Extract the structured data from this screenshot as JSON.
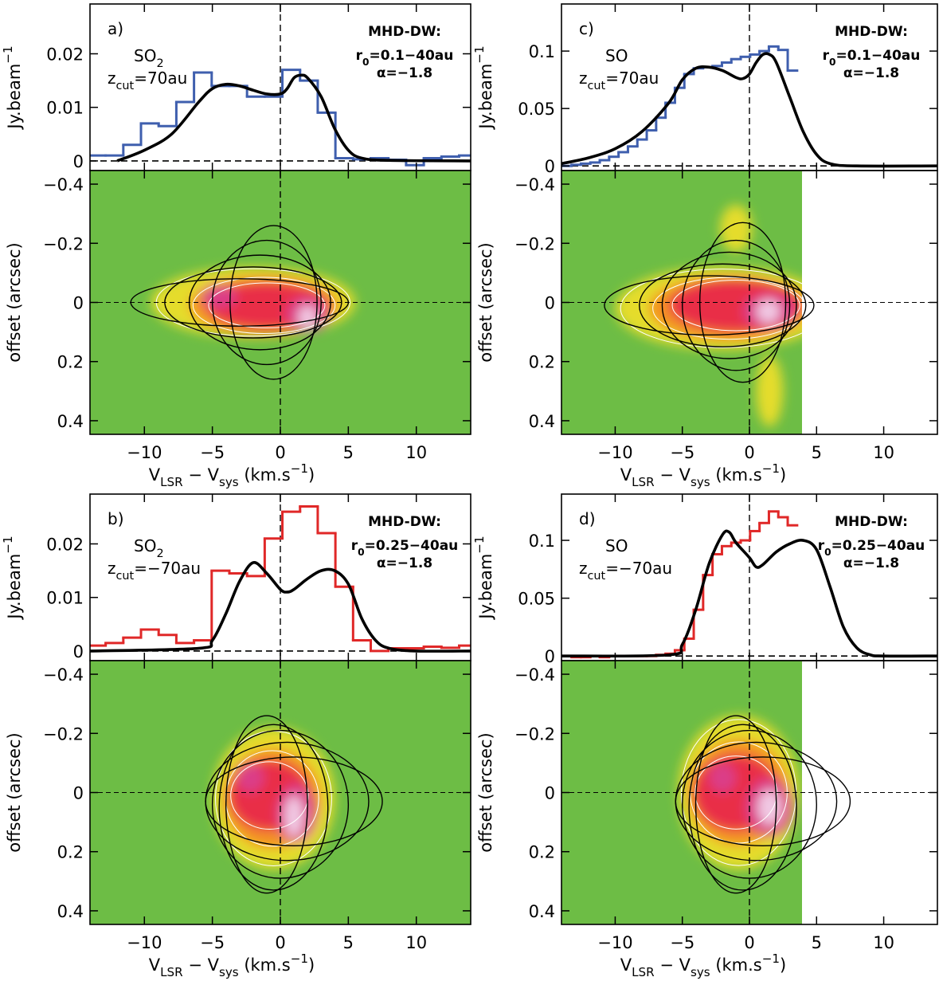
{
  "chart_data": [
    {
      "type": "line",
      "panel_label": "a)",
      "molecule": [
        {
          "text": "SO"
        },
        {
          "sub": "2"
        }
      ],
      "zcut": [
        {
          "text": "z"
        },
        {
          "sub": "cut"
        },
        {
          "text": "=70au"
        }
      ],
      "model": "MHD-DW:",
      "r0": [
        {
          "text": "r"
        },
        {
          "sub": "0"
        },
        {
          "text": "=0.1−40au"
        }
      ],
      "alpha": "α=−1.8",
      "y_label": [
        {
          "text": "Jy.beam"
        },
        {
          "sup": "−1"
        }
      ],
      "xlim": [
        -14,
        14
      ],
      "ylim": [
        -0.0018,
        0.0293
      ],
      "xticks": [
        -10,
        -5,
        0,
        5,
        10
      ],
      "yticks": [
        0,
        0.01,
        0.02
      ],
      "series": [
        {
          "style": "step",
          "color": "#3f5fae",
          "x": [
            -13.5,
            -12.2,
            -10.9,
            -9.6,
            -8.3,
            -7.0,
            -5.7,
            -4.4,
            -3.1,
            -1.8,
            -0.5,
            0.8,
            2.1,
            3.4,
            4.7,
            6.0,
            7.3,
            8.6,
            9.9,
            11.2,
            12.5,
            13.8
          ],
          "values": [
            0.001,
            0.001,
            0.003,
            0.007,
            0.0065,
            0.011,
            0.0165,
            0.014,
            0.014,
            0.012,
            0.012,
            0.017,
            0.015,
            0.009,
            0.0005,
            0.0003,
            0.0005,
            0.0002,
            -0.0008,
            0.0005,
            0.0008,
            0.001
          ]
        },
        {
          "style": "line",
          "color": "#000000",
          "x": [
            -12,
            -10,
            -8,
            -6,
            -5,
            -4,
            -3,
            -2,
            -1,
            0,
            0.5,
            1,
            1.5,
            2,
            3,
            4,
            5,
            6,
            8,
            14
          ],
          "values": [
            0,
            0.002,
            0.005,
            0.011,
            0.0135,
            0.0143,
            0.014,
            0.0132,
            0.0125,
            0.0125,
            0.0135,
            0.0155,
            0.016,
            0.0155,
            0.012,
            0.006,
            0.002,
            0.0005,
            0.0001,
            0
          ]
        }
      ]
    },
    {
      "type": "image",
      "y_label": "offset (arcsec)",
      "x_label": [
        {
          "text": "V"
        },
        {
          "sub": "LSR"
        },
        {
          "text": " − V"
        },
        {
          "sub": "sys"
        },
        {
          "text": " (km.s"
        },
        {
          "sup": "−1"
        },
        {
          "text": ")"
        }
      ],
      "xlim": [
        -14,
        14
      ],
      "ylim": [
        0.446,
        -0.446
      ],
      "xticks": [
        {
          "value": -10,
          "label": "−10"
        },
        {
          "value": -5,
          "label": "−5"
        },
        0,
        5,
        10
      ],
      "yticks": [
        {
          "value": -0.4,
          "label": "−0.4"
        },
        {
          "value": -0.2,
          "label": "−0.2"
        },
        0,
        0.2,
        0.4
      ]
    },
    {
      "type": "line",
      "panel_label": "c)",
      "molecule": [
        {
          "text": "SO"
        }
      ],
      "zcut": [
        {
          "text": "z"
        },
        {
          "sub": "cut"
        },
        {
          "text": "=70au"
        }
      ],
      "model": "MHD-DW:",
      "r0": [
        {
          "text": "r"
        },
        {
          "sub": "0"
        },
        {
          "text": "=0.1−40au"
        }
      ],
      "alpha": "α=−1.8",
      "y_label": [
        {
          "text": "Jy.beam"
        },
        {
          "sup": "−1"
        }
      ],
      "xlim": [
        -14,
        14
      ],
      "ylim": [
        -0.004,
        0.141
      ],
      "xticks": [
        -10,
        -5,
        0,
        5,
        10
      ],
      "yticks": [
        0,
        0.05,
        0.1
      ],
      "series": [
        {
          "style": "step",
          "color": "#3f5fae",
          "x": [
            -13.6,
            -12.9,
            -12.2,
            -11.5,
            -10.8,
            -10.1,
            -9.4,
            -8.7,
            -8.0,
            -7.3,
            -6.6,
            -5.9,
            -5.2,
            -4.5,
            -3.8,
            -3.1,
            -2.4,
            -1.7,
            -1.0,
            -0.3,
            0.4,
            1.1,
            1.8,
            2.5,
            3.2
          ],
          "values": [
            0,
            0.001,
            0.002,
            0.003,
            0.005,
            0.008,
            0.012,
            0.017,
            0.023,
            0.031,
            0.042,
            0.055,
            0.068,
            0.08,
            0.085,
            0.086,
            0.087,
            0.09,
            0.093,
            0.095,
            0.097,
            0.1,
            0.104,
            0.101,
            0.083
          ]
        },
        {
          "style": "line",
          "color": "#000000",
          "x": [
            -14,
            -12,
            -10,
            -8,
            -6,
            -5,
            -4,
            -3,
            -2,
            -1,
            -0.5,
            0,
            0.5,
            1,
            1.5,
            2,
            3,
            4,
            5,
            6,
            8,
            14
          ],
          "values": [
            0.002,
            0.007,
            0.015,
            0.03,
            0.055,
            0.075,
            0.085,
            0.086,
            0.083,
            0.077,
            0.076,
            0.08,
            0.09,
            0.097,
            0.097,
            0.09,
            0.06,
            0.03,
            0.01,
            0.002,
            0,
            0
          ]
        }
      ]
    },
    {
      "type": "image",
      "y_label": "offset (arcsec)",
      "x_label": [
        {
          "text": "V"
        },
        {
          "sub": "LSR"
        },
        {
          "text": " − V"
        },
        {
          "sub": "sys"
        },
        {
          "text": " (km.s"
        },
        {
          "sup": "−1"
        },
        {
          "text": ")"
        }
      ],
      "xlim": [
        -14,
        14
      ],
      "ylim": [
        0.446,
        -0.446
      ],
      "xticks": [
        {
          "value": -10,
          "label": "−10"
        },
        {
          "value": -5,
          "label": "−5"
        },
        0,
        5,
        10
      ],
      "yticks": [
        {
          "value": -0.4,
          "label": "−0.4"
        },
        {
          "value": -0.2,
          "label": "−0.2"
        },
        0,
        0.2,
        0.4
      ]
    },
    {
      "type": "line",
      "panel_label": "b)",
      "molecule": [
        {
          "text": "SO"
        },
        {
          "sub": "2"
        }
      ],
      "zcut": [
        {
          "text": "z"
        },
        {
          "sub": "cut"
        },
        {
          "text": "=−70au"
        }
      ],
      "model": "MHD-DW:",
      "r0": [
        {
          "text": "r"
        },
        {
          "sub": "0"
        },
        {
          "text": "=0.25−40au"
        }
      ],
      "alpha": "α=−1.8",
      "y_label": [
        {
          "text": "Jy.beam"
        },
        {
          "sup": "−1"
        }
      ],
      "xlim": [
        -14,
        14
      ],
      "ylim": [
        -0.0018,
        0.0293
      ],
      "xticks": [
        -10,
        -5,
        0,
        5,
        10
      ],
      "yticks": [
        0,
        0.01,
        0.02
      ],
      "series": [
        {
          "style": "step",
          "color": "#e02828",
          "x": [
            -13.5,
            -12.2,
            -10.9,
            -9.6,
            -8.3,
            -7.0,
            -5.7,
            -4.4,
            -3.1,
            -1.8,
            -0.5,
            0.8,
            2.1,
            3.4,
            4.7,
            6.0,
            7.3,
            8.6,
            9.9,
            11.2,
            12.5,
            13.8
          ],
          "values": [
            0.001,
            0.0015,
            0.0025,
            0.004,
            0.003,
            0.0015,
            0.002,
            0.015,
            0.0145,
            0.014,
            0.021,
            0.026,
            0.027,
            0.022,
            0.012,
            0.002,
            0,
            0.0005,
            0.0005,
            0.0008,
            0.0006,
            0.001
          ]
        },
        {
          "style": "line",
          "color": "#000000",
          "x": [
            -14,
            -6,
            -5,
            -4,
            -3,
            -2,
            -1,
            0,
            0.5,
            1,
            2,
            3,
            4,
            5,
            6,
            7,
            8,
            10,
            14
          ],
          "values": [
            0,
            0.0005,
            0.002,
            0.007,
            0.013,
            0.0165,
            0.0145,
            0.0115,
            0.011,
            0.0115,
            0.0135,
            0.015,
            0.015,
            0.0125,
            0.006,
            0.002,
            0.0005,
            0,
            0
          ]
        }
      ]
    },
    {
      "type": "image",
      "y_label": "offset (arcsec)",
      "x_label": [
        {
          "text": "V"
        },
        {
          "sub": "LSR"
        },
        {
          "text": " − V"
        },
        {
          "sub": "sys"
        },
        {
          "text": " (km.s"
        },
        {
          "sup": "−1"
        },
        {
          "text": ")"
        }
      ],
      "xlim": [
        -14,
        14
      ],
      "ylim": [
        0.446,
        -0.446
      ],
      "xticks": [
        {
          "value": -10,
          "label": "−10"
        },
        {
          "value": -5,
          "label": "−5"
        },
        0,
        5,
        10
      ],
      "yticks": [
        {
          "value": -0.4,
          "label": "−0.4"
        },
        {
          "value": -0.2,
          "label": "−0.2"
        },
        0,
        0.2,
        0.4
      ]
    },
    {
      "type": "line",
      "panel_label": "d)",
      "molecule": [
        {
          "text": "SO"
        }
      ],
      "zcut": [
        {
          "text": "z"
        },
        {
          "sub": "cut"
        },
        {
          "text": "=−70au"
        }
      ],
      "model": "MHD-DW:",
      "r0": [
        {
          "text": "r"
        },
        {
          "sub": "0"
        },
        {
          "text": "=0.25−40au"
        }
      ],
      "alpha": "α=−1.8",
      "y_label": [
        {
          "text": "Jy.beam"
        },
        {
          "sup": "−1"
        }
      ],
      "xlim": [
        -14,
        14
      ],
      "ylim": [
        -0.004,
        0.14
      ],
      "xticks": [
        -10,
        -5,
        0,
        5,
        10
      ],
      "yticks": [
        0,
        0.05,
        0.1
      ],
      "series": [
        {
          "style": "step",
          "color": "#e02828",
          "x": [
            -13.6,
            -12.9,
            -12.2,
            -11.5,
            -10.8,
            -10.1,
            -9.4,
            -8.7,
            -8.0,
            -7.3,
            -6.6,
            -5.9,
            -5.2,
            -4.5,
            -3.8,
            -3.1,
            -2.4,
            -1.7,
            -1.0,
            -0.3,
            0.4,
            1.1,
            1.8,
            2.5,
            3.2
          ],
          "values": [
            0,
            -0.001,
            -0.001,
            0,
            -0.001,
            0,
            0,
            0,
            0,
            0,
            0.001,
            0.002,
            0.005,
            0.015,
            0.04,
            0.07,
            0.088,
            0.095,
            0.098,
            0.1,
            0.108,
            0.115,
            0.125,
            0.12,
            0.113
          ]
        },
        {
          "style": "line",
          "color": "#000000",
          "x": [
            -14,
            -6,
            -5,
            -4,
            -3,
            -2,
            -1.5,
            -1,
            0,
            0.5,
            1,
            2,
            3,
            4,
            5,
            6,
            7,
            8,
            9,
            10,
            14
          ],
          "values": [
            0,
            0.001,
            0.01,
            0.04,
            0.08,
            0.105,
            0.107,
            0.098,
            0.085,
            0.077,
            0.079,
            0.09,
            0.097,
            0.1,
            0.092,
            0.06,
            0.025,
            0.007,
            0.001,
            0,
            0
          ]
        }
      ]
    },
    {
      "type": "image",
      "y_label": "offset (arcsec)",
      "x_label": [
        {
          "text": "V"
        },
        {
          "sub": "LSR"
        },
        {
          "text": " − V"
        },
        {
          "sub": "sys"
        },
        {
          "text": " (km.s"
        },
        {
          "sup": "−1"
        },
        {
          "text": ")"
        }
      ],
      "xlim": [
        -14,
        14
      ],
      "ylim": [
        0.446,
        -0.446
      ],
      "xticks": [
        {
          "value": -10,
          "label": "−10"
        },
        {
          "value": -5,
          "label": "−5"
        },
        0,
        5,
        10
      ],
      "yticks": [
        {
          "value": -0.4,
          "label": "−0.4"
        },
        {
          "value": -0.2,
          "label": "−0.2"
        },
        0,
        0.2,
        0.4
      ]
    }
  ]
}
